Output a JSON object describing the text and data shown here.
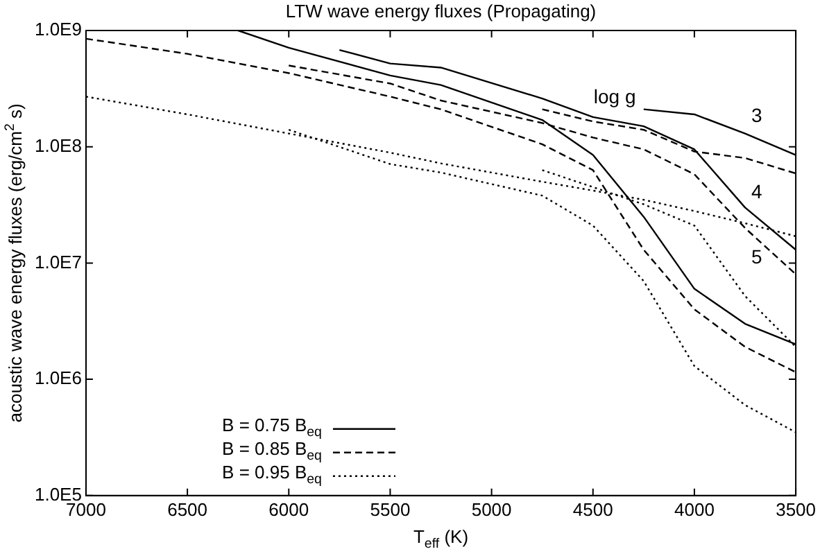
{
  "chart_data": {
    "type": "line",
    "title": "LTW wave energy fluxes (Propagating)",
    "xlabel": "T$_{eff}$ (K)",
    "ylabel": "acoustic wave energy fluxes (erg/cm$^{2}$ s)",
    "log": "y",
    "xlim": [
      7000,
      3500
    ],
    "xticks": [
      7000,
      6500,
      6000,
      5500,
      5000,
      4500,
      4000,
      3500
    ],
    "ylim": [
      100000,
      1000000000
    ],
    "yticks": [
      {
        "value": 100000,
        "label": "1.0E5"
      },
      {
        "value": 1000000,
        "label": "1.0E6"
      },
      {
        "value": 10000000,
        "label": "1.0E7"
      },
      {
        "value": 100000000,
        "label": "1.0E8"
      },
      {
        "value": 1000000000,
        "label": "1.0E9"
      }
    ],
    "grid": false,
    "legend": "bottom left",
    "marker": "none",
    "annotations": [
      "log g",
      "3",
      "4",
      "5"
    ],
    "series": [
      {
        "name": "B = 0.75 B$_{eq}$",
        "color": "#000000",
        "line_style": "solid",
        "x": [
          6250,
          6000,
          5500,
          5250,
          4750,
          4500,
          4250,
          4000,
          3750,
          3500
        ],
        "values": [
          1000000000,
          710000000,
          410000000,
          340000000,
          170000000,
          85000000,
          25000000,
          6000000,
          3000000,
          2000000
        ]
      },
      {
        "color": "#000000",
        "line_style": "solid",
        "x": [
          5750,
          5500,
          5250,
          4750,
          4500,
          4250,
          4000,
          3750,
          3500
        ],
        "values": [
          680000000,
          520000000,
          480000000,
          260000000,
          180000000,
          150000000,
          95000000,
          30000000,
          13000000
        ]
      },
      {
        "color": "#000000",
        "line_style": "solid",
        "x": [
          4250,
          4000,
          3750,
          3500
        ],
        "values": [
          210000000,
          190000000,
          130000000,
          85000000
        ]
      },
      {
        "name": "B = 0.85 B$_{eq}$",
        "color": "#000000",
        "line_style": "dashed",
        "x": [
          7000,
          6500,
          6000,
          5500,
          5250,
          4750,
          4500,
          4250,
          4000,
          3750,
          3500
        ],
        "values": [
          850000000,
          630000000,
          430000000,
          270000000,
          210000000,
          105000000,
          63000000,
          13000000,
          4000000,
          1900000,
          1150000
        ]
      },
      {
        "color": "#000000",
        "line_style": "dashed",
        "x": [
          6000,
          5500,
          5250,
          4750,
          4500,
          4250,
          4000,
          3750,
          3500
        ],
        "values": [
          500000000,
          350000000,
          250000000,
          160000000,
          120000000,
          95000000,
          58000000,
          20000000,
          8000000
        ]
      },
      {
        "color": "#000000",
        "line_style": "dashed",
        "x": [
          4750,
          4500,
          4250,
          4000,
          3750,
          3500
        ],
        "values": [
          210000000,
          165000000,
          140000000,
          91000000,
          80000000,
          59000000
        ]
      },
      {
        "name": "B = 0.95 B$_{eq}$",
        "color": "#000000",
        "line_style": "dotted",
        "x": [
          7000,
          6500,
          6000,
          5500,
          5250,
          4750,
          4500,
          4250,
          4000,
          3750,
          3500
        ],
        "values": [
          270000000,
          190000000,
          130000000,
          89000000,
          72000000,
          50000000,
          42000000,
          35000000,
          28000000,
          22000000,
          17000000
        ]
      },
      {
        "color": "#000000",
        "line_style": "dotted",
        "x": [
          6000,
          5500,
          5250,
          4750,
          4500,
          4250,
          4000,
          3750,
          3500
        ],
        "values": [
          140000000,
          71000000,
          60000000,
          38000000,
          21000000,
          7000000,
          1300000,
          600000,
          350000
        ]
      },
      {
        "color": "#000000",
        "line_style": "dotted",
        "x": [
          4750,
          4500,
          4250,
          4000,
          3750,
          3500
        ],
        "values": [
          63000000,
          45000000,
          32000000,
          21000000,
          5200000,
          1900000
        ]
      }
    ]
  }
}
